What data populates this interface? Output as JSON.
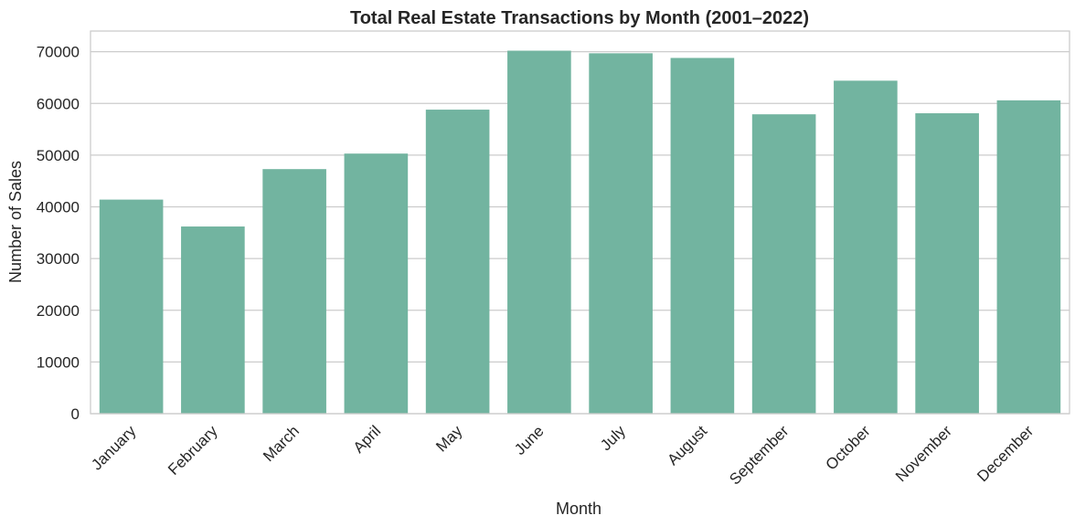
{
  "chart_data": {
    "type": "bar",
    "title": "Total Real Estate Transactions by Month (2001–2022)",
    "xlabel": "Month",
    "ylabel": "Number of Sales",
    "categories": [
      "January",
      "February",
      "March",
      "April",
      "May",
      "June",
      "July",
      "August",
      "September",
      "October",
      "November",
      "December"
    ],
    "values": [
      41400,
      36200,
      47300,
      50300,
      58800,
      70200,
      69700,
      68800,
      57900,
      64400,
      58100,
      60600
    ],
    "ylim": [
      0,
      74000
    ],
    "yticks": [
      "0",
      "10000",
      "20000",
      "30000",
      "40000",
      "50000",
      "60000",
      "70000"
    ],
    "grid": "horizontal",
    "bar_color": "#72b4a0"
  }
}
